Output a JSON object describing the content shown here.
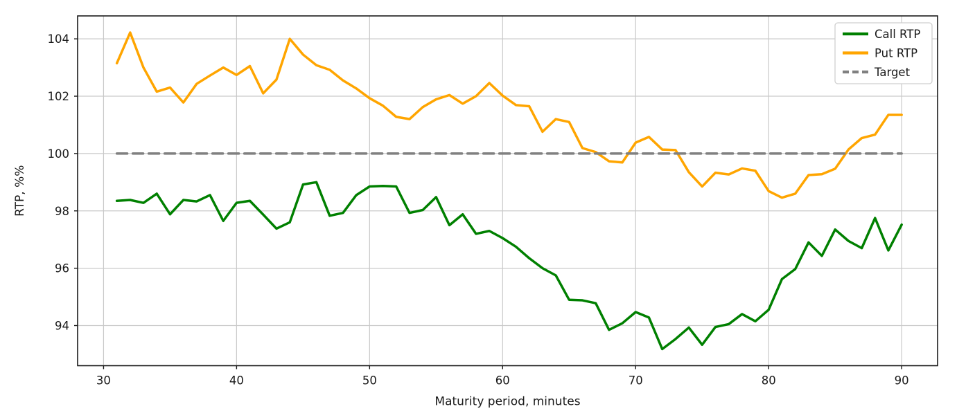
{
  "chart_data": {
    "type": "line",
    "title": "",
    "xlabel": "Maturity period, minutes",
    "ylabel": "RTP, %%",
    "grid": true,
    "legend_position": "upper right",
    "xlim": [
      28.05,
      92.7
    ],
    "ylim": [
      92.6,
      104.8
    ],
    "x_ticks": [
      30,
      40,
      50,
      60,
      70,
      80,
      90
    ],
    "y_ticks": [
      94,
      96,
      98,
      100,
      102,
      104
    ],
    "x": [
      31,
      32,
      33,
      34,
      35,
      36,
      37,
      38,
      39,
      40,
      41,
      42,
      43,
      44,
      45,
      46,
      47,
      48,
      49,
      50,
      51,
      52,
      53,
      54,
      55,
      56,
      57,
      58,
      59,
      60,
      61,
      62,
      63,
      64,
      65,
      66,
      67,
      68,
      69,
      70,
      71,
      72,
      73,
      74,
      75,
      76,
      77,
      78,
      79,
      80,
      81,
      82,
      83,
      84,
      85,
      86,
      87,
      88,
      89,
      90
    ],
    "series": [
      {
        "name": "Call RTP",
        "color": "#008000",
        "style": "solid",
        "values": [
          98.35,
          98.38,
          98.28,
          98.6,
          97.88,
          98.38,
          98.33,
          98.55,
          97.65,
          98.28,
          98.35,
          97.87,
          97.38,
          97.6,
          98.92,
          99.0,
          97.83,
          97.93,
          98.55,
          98.85,
          98.87,
          98.85,
          97.93,
          98.03,
          98.48,
          97.5,
          97.88,
          97.2,
          97.3,
          97.05,
          96.75,
          96.35,
          96.0,
          95.75,
          94.9,
          94.88,
          94.78,
          93.85,
          94.08,
          94.47,
          94.28,
          93.18,
          93.53,
          93.93,
          93.33,
          93.95,
          94.05,
          94.4,
          94.15,
          94.55,
          95.62,
          95.97,
          96.9,
          96.43,
          97.35,
          96.95,
          96.7,
          97.75,
          96.62,
          97.52
        ]
      },
      {
        "name": "Put RTP",
        "color": "#ffa500",
        "style": "solid",
        "values": [
          103.15,
          104.22,
          103.0,
          102.16,
          102.3,
          101.78,
          102.43,
          102.72,
          103.0,
          102.74,
          103.05,
          102.1,
          102.58,
          104.0,
          103.45,
          103.08,
          102.92,
          102.55,
          102.27,
          101.93,
          101.67,
          101.28,
          101.2,
          101.62,
          101.89,
          102.04,
          101.74,
          102.0,
          102.46,
          102.02,
          101.69,
          101.65,
          100.76,
          101.2,
          101.1,
          100.19,
          100.05,
          99.73,
          99.69,
          100.38,
          100.58,
          100.14,
          100.12,
          99.35,
          98.85,
          99.33,
          99.27,
          99.48,
          99.4,
          98.69,
          98.46,
          98.6,
          99.25,
          99.28,
          99.47,
          100.14,
          100.54,
          100.66,
          101.35,
          101.35
        ]
      },
      {
        "name": "Target",
        "color": "#808080",
        "style": "dashed",
        "constant": 100.0
      }
    ]
  },
  "style": {
    "grid_color": "#c9c9c9",
    "spine_color": "#1a1a1a",
    "text_color": "#1a1a1a",
    "legend_border": "#cfcfcf",
    "background": "#ffffff"
  }
}
